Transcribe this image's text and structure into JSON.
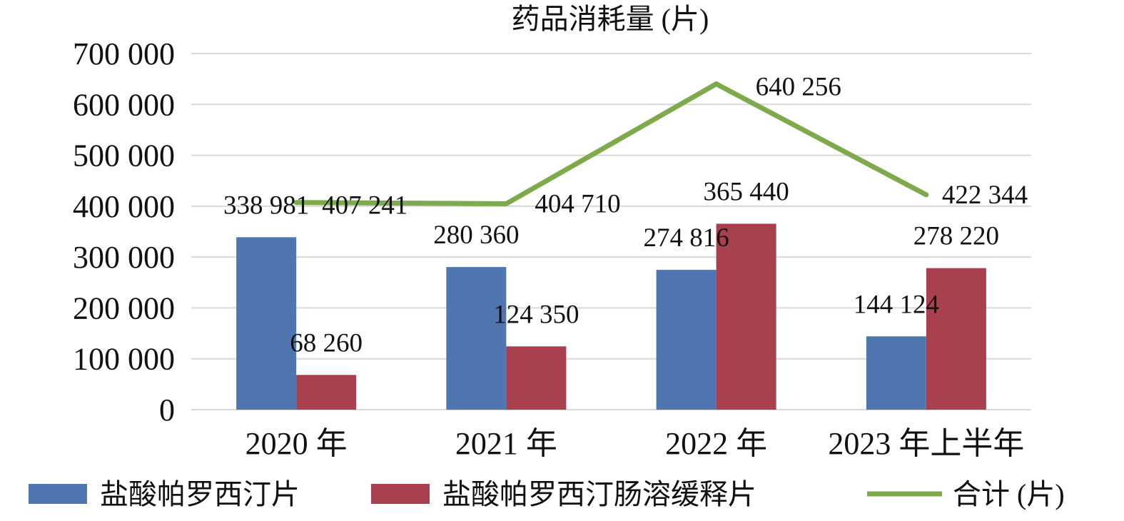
{
  "chart_data": {
    "type": "bar",
    "title": "药品消耗量 (片)",
    "categories": [
      "2020 年",
      "2021 年",
      "2022 年",
      "2023 年上半年"
    ],
    "series": [
      {
        "name": "盐酸帕罗西汀片",
        "type": "bar",
        "color": "#4f76b0",
        "values": [
          338981,
          280360,
          274816,
          144124
        ],
        "labels": [
          "338 981",
          "280 360",
          "274 816",
          "144 124"
        ]
      },
      {
        "name": "盐酸帕罗西汀肠溶缓释片",
        "type": "bar",
        "color": "#a8404f",
        "values": [
          68260,
          124350,
          365440,
          278220
        ],
        "labels": [
          "68 260",
          "124 350",
          "365 440",
          "278 220"
        ]
      },
      {
        "name": "合计 (片)",
        "type": "line",
        "color": "#7dab4c",
        "values": [
          407241,
          404710,
          640256,
          422344
        ],
        "labels": [
          "407 241",
          "404 710",
          "640 256",
          "422 344"
        ]
      }
    ],
    "yticks": [
      "0",
      "100 000",
      "200 000",
      "300 000",
      "400 000",
      "500 000",
      "600 000",
      "700 000"
    ],
    "ylim": [
      0,
      700000
    ],
    "grid": true,
    "legend": "bottom",
    "xlabel": "",
    "ylabel": ""
  }
}
